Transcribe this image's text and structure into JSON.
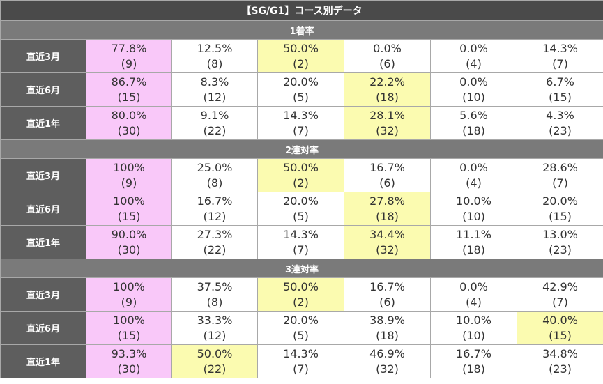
{
  "title": "【SG/G1】コース別データ",
  "colors": {
    "pink": "#f9c8f9",
    "yellow": "#fbfbb0"
  },
  "sections": [
    {
      "label": "1着率",
      "rows": [
        {
          "label": "直近3月",
          "cells": [
            {
              "value": "77.8%",
              "count": "(9)",
              "hl": "pink"
            },
            {
              "value": "12.5%",
              "count": "(8)"
            },
            {
              "value": "50.0%",
              "count": "(2)",
              "hl": "yellow"
            },
            {
              "value": "0.0%",
              "count": "(6)"
            },
            {
              "value": "0.0%",
              "count": "(4)"
            },
            {
              "value": "14.3%",
              "count": "(7)"
            }
          ]
        },
        {
          "label": "直近6月",
          "cells": [
            {
              "value": "86.7%",
              "count": "(15)",
              "hl": "pink"
            },
            {
              "value": "8.3%",
              "count": "(12)"
            },
            {
              "value": "20.0%",
              "count": "(5)"
            },
            {
              "value": "22.2%",
              "count": "(18)",
              "hl": "yellow"
            },
            {
              "value": "0.0%",
              "count": "(10)"
            },
            {
              "value": "6.7%",
              "count": "(15)"
            }
          ]
        },
        {
          "label": "直近1年",
          "cells": [
            {
              "value": "80.0%",
              "count": "(30)",
              "hl": "pink"
            },
            {
              "value": "9.1%",
              "count": "(22)"
            },
            {
              "value": "14.3%",
              "count": "(7)"
            },
            {
              "value": "28.1%",
              "count": "(32)",
              "hl": "yellow"
            },
            {
              "value": "5.6%",
              "count": "(18)"
            },
            {
              "value": "4.3%",
              "count": "(23)"
            }
          ]
        }
      ]
    },
    {
      "label": "2連対率",
      "rows": [
        {
          "label": "直近3月",
          "cells": [
            {
              "value": "100%",
              "count": "(9)",
              "hl": "pink"
            },
            {
              "value": "25.0%",
              "count": "(8)"
            },
            {
              "value": "50.0%",
              "count": "(2)",
              "hl": "yellow"
            },
            {
              "value": "16.7%",
              "count": "(6)"
            },
            {
              "value": "0.0%",
              "count": "(4)"
            },
            {
              "value": "28.6%",
              "count": "(7)"
            }
          ]
        },
        {
          "label": "直近6月",
          "cells": [
            {
              "value": "100%",
              "count": "(15)",
              "hl": "pink"
            },
            {
              "value": "16.7%",
              "count": "(12)"
            },
            {
              "value": "20.0%",
              "count": "(5)"
            },
            {
              "value": "27.8%",
              "count": "(18)",
              "hl": "yellow"
            },
            {
              "value": "10.0%",
              "count": "(10)"
            },
            {
              "value": "20.0%",
              "count": "(15)"
            }
          ]
        },
        {
          "label": "直近1年",
          "cells": [
            {
              "value": "90.0%",
              "count": "(30)",
              "hl": "pink"
            },
            {
              "value": "27.3%",
              "count": "(22)"
            },
            {
              "value": "14.3%",
              "count": "(7)"
            },
            {
              "value": "34.4%",
              "count": "(32)",
              "hl": "yellow"
            },
            {
              "value": "11.1%",
              "count": "(18)"
            },
            {
              "value": "13.0%",
              "count": "(23)"
            }
          ]
        }
      ]
    },
    {
      "label": "3連対率",
      "rows": [
        {
          "label": "直近3月",
          "cells": [
            {
              "value": "100%",
              "count": "(9)",
              "hl": "pink"
            },
            {
              "value": "37.5%",
              "count": "(8)"
            },
            {
              "value": "50.0%",
              "count": "(2)",
              "hl": "yellow"
            },
            {
              "value": "16.7%",
              "count": "(6)"
            },
            {
              "value": "0.0%",
              "count": "(4)"
            },
            {
              "value": "42.9%",
              "count": "(7)"
            }
          ]
        },
        {
          "label": "直近6月",
          "cells": [
            {
              "value": "100%",
              "count": "(15)",
              "hl": "pink"
            },
            {
              "value": "33.3%",
              "count": "(12)"
            },
            {
              "value": "20.0%",
              "count": "(5)"
            },
            {
              "value": "38.9%",
              "count": "(18)"
            },
            {
              "value": "10.0%",
              "count": "(10)"
            },
            {
              "value": "40.0%",
              "count": "(15)",
              "hl": "yellow"
            }
          ]
        },
        {
          "label": "直近1年",
          "cells": [
            {
              "value": "93.3%",
              "count": "(30)",
              "hl": "pink"
            },
            {
              "value": "50.0%",
              "count": "(22)",
              "hl": "yellow"
            },
            {
              "value": "14.3%",
              "count": "(7)"
            },
            {
              "value": "46.9%",
              "count": "(32)"
            },
            {
              "value": "16.7%",
              "count": "(18)"
            },
            {
              "value": "34.8%",
              "count": "(23)"
            }
          ]
        }
      ]
    }
  ]
}
